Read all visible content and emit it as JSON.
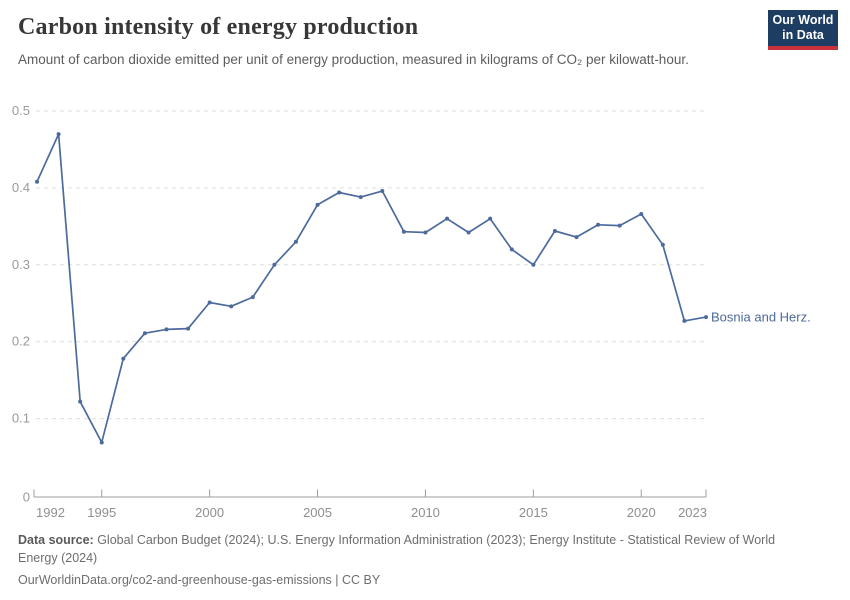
{
  "header": {
    "title": "Carbon intensity of energy production",
    "subtitle": "Amount of carbon dioxide emitted per unit of energy production, measured in kilograms of CO₂ per kilowatt-hour.",
    "logo": {
      "line1": "Our World",
      "line2": "in Data"
    }
  },
  "chart_data": {
    "type": "line",
    "title": "Carbon intensity of energy production",
    "xlabel": "",
    "ylabel": "kg CO₂ per kilowatt-hour",
    "x": [
      1992,
      1993,
      1994,
      1995,
      1996,
      1997,
      1998,
      1999,
      2000,
      2001,
      2002,
      2003,
      2004,
      2005,
      2006,
      2007,
      2008,
      2009,
      2010,
      2011,
      2012,
      2013,
      2014,
      2015,
      2016,
      2017,
      2018,
      2019,
      2020,
      2021,
      2022,
      2023
    ],
    "series": [
      {
        "name": "Bosnia and Herz.",
        "values": [
          0.408,
          0.47,
          0.122,
          0.069,
          0.178,
          0.211,
          0.216,
          0.217,
          0.251,
          0.246,
          0.258,
          0.3,
          0.33,
          0.378,
          0.394,
          0.388,
          0.396,
          0.343,
          0.342,
          0.36,
          0.342,
          0.36,
          0.32,
          0.3,
          0.344,
          0.336,
          0.352,
          0.351,
          0.366,
          0.326,
          0.227,
          0.232
        ]
      }
    ],
    "ylim": [
      0,
      0.5
    ],
    "yticks": [
      "0",
      "0.1",
      "0.2",
      "0.3",
      "0.4",
      "0.5"
    ],
    "ytick_values": [
      0,
      0.1,
      0.2,
      0.3,
      0.4,
      0.5
    ],
    "xticks": [
      1992,
      1995,
      2000,
      2005,
      2010,
      2015,
      2020,
      2023
    ],
    "grid": true,
    "grid_style": "dashed horizontal",
    "legend_position": "end-of-line-label"
  },
  "colors": {
    "line": "#4c6a9c",
    "series_label": "#4c6a9c",
    "gridline": "#dedede",
    "axis": "#9e9e9e",
    "logo_bg": "#1d3d63",
    "logo_red": "#c9313d"
  },
  "footer": {
    "datasource_label": "Data source:",
    "datasource_text": " Global Carbon Budget (2024); U.S. Energy Information Administration (2023); Energy Institute - Statistical Review of World Energy (2024)",
    "cc_line": "OurWorldinData.org/co2-and-greenhouse-gas-emissions | CC BY"
  }
}
